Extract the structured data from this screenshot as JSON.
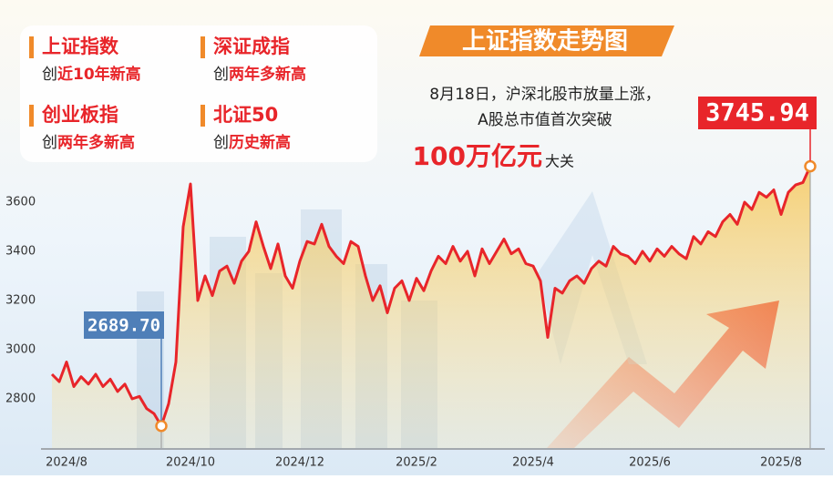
{
  "chart_data": {
    "type": "line",
    "title": "上证指数走势图",
    "annotation": {
      "lines": [
        "8月18日，沪深北股市放量上涨，",
        "A股总市值首次突破"
      ],
      "highlight": "100万亿元",
      "suffix": "大关"
    },
    "highlights": [
      {
        "name": "上证指数",
        "prefix": "创",
        "text": "近10年新高"
      },
      {
        "name": "深证成指",
        "prefix": "创",
        "text": "两年多新高"
      },
      {
        "name": "创业板指",
        "prefix": "创",
        "text": "两年多新高"
      },
      {
        "name": "北证50",
        "prefix": "创",
        "text": "历史新高"
      }
    ],
    "categories": [
      null,
      null,
      "2024/8",
      null,
      null,
      null,
      null,
      null,
      null,
      null,
      null,
      null,
      null,
      null,
      null,
      null,
      null,
      null,
      null,
      "2024/10",
      null,
      null,
      null,
      null,
      null,
      null,
      null,
      null,
      null,
      null,
      null,
      null,
      null,
      null,
      "2024/12",
      null,
      null,
      null,
      null,
      null,
      null,
      null,
      null,
      null,
      null,
      null,
      null,
      null,
      null,
      null,
      "2025/2",
      null,
      null,
      null,
      null,
      null,
      null,
      null,
      null,
      null,
      null,
      null,
      null,
      null,
      null,
      null,
      "2025/4",
      null,
      null,
      null,
      null,
      null,
      null,
      null,
      null,
      null,
      null,
      null,
      null,
      null,
      null,
      null,
      "2025/6",
      null,
      null,
      null,
      null,
      null,
      null,
      null,
      null,
      null,
      null,
      null,
      null,
      null,
      null,
      null,
      null,
      null,
      "2025/8",
      null,
      null,
      null,
      null
    ],
    "values": [
      2900,
      2870,
      2950,
      2850,
      2890,
      2860,
      2900,
      2850,
      2880,
      2830,
      2860,
      2800,
      2810,
      2760,
      2740,
      2689.7,
      2780,
      2950,
      3500,
      3674,
      3200,
      3300,
      3220,
      3320,
      3340,
      3270,
      3360,
      3400,
      3520,
      3420,
      3330,
      3430,
      3300,
      3250,
      3360,
      3440,
      3430,
      3510,
      3420,
      3380,
      3350,
      3440,
      3420,
      3300,
      3200,
      3260,
      3150,
      3250,
      3280,
      3200,
      3290,
      3240,
      3320,
      3380,
      3350,
      3420,
      3360,
      3400,
      3300,
      3410,
      3350,
      3400,
      3450,
      3390,
      3410,
      3350,
      3340,
      3280,
      3050,
      3250,
      3230,
      3280,
      3300,
      3270,
      3330,
      3360,
      3340,
      3420,
      3390,
      3380,
      3350,
      3400,
      3360,
      3410,
      3380,
      3420,
      3390,
      3370,
      3460,
      3430,
      3480,
      3460,
      3520,
      3550,
      3510,
      3600,
      3570,
      3640,
      3620,
      3650,
      3550,
      3640,
      3670,
      3680,
      3745.94
    ],
    "value_labels": [
      null,
      null,
      null,
      null,
      null,
      null,
      null,
      null,
      null,
      null,
      null,
      null,
      null,
      null,
      null,
      "2689.70",
      null,
      null,
      null,
      null,
      null,
      null,
      null,
      null,
      null,
      null,
      null,
      null,
      null,
      null,
      null,
      null,
      null,
      null,
      null,
      null,
      null,
      null,
      null,
      null,
      null,
      null,
      null,
      null,
      null,
      null,
      null,
      null,
      null,
      null,
      null,
      null,
      null,
      null,
      null,
      null,
      null,
      null,
      null,
      null,
      null,
      null,
      null,
      null,
      null,
      null,
      null,
      null,
      null,
      null,
      null,
      null,
      null,
      null,
      null,
      null,
      null,
      null,
      null,
      null,
      null,
      null,
      null,
      null,
      null,
      null,
      null,
      null,
      null,
      null,
      null,
      null,
      null,
      null,
      null,
      null,
      null,
      null,
      null,
      null,
      null,
      null,
      null,
      null,
      "3745.94"
    ],
    "color": "#e8252a",
    "ylim": [
      2600,
      3800
    ],
    "yticks": [
      2800,
      3000,
      3200,
      3400,
      3600
    ]
  }
}
